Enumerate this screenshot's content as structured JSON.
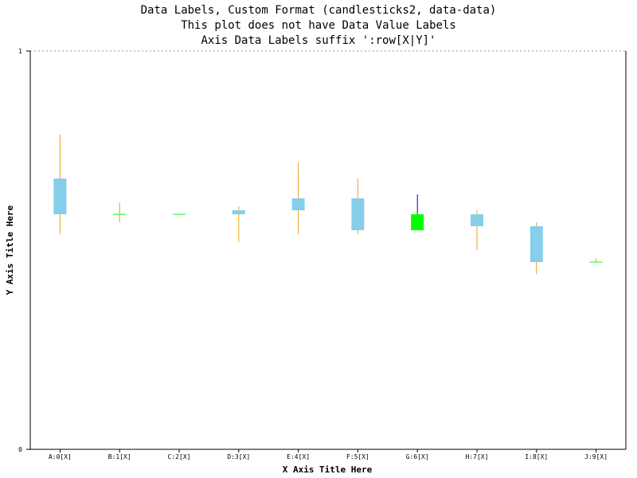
{
  "chart_data": {
    "type": "candlestick",
    "title": [
      "Data Labels, Custom Format (candlesticks2, data-data)",
      "This plot does not have Data Value Labels",
      "Axis Data Labels suffix ':row[X|Y]'"
    ],
    "xlabel": "X Axis Title Here",
    "ylabel": "Y Axis Title Here",
    "ylim": [
      0,
      1
    ],
    "y_ticks": [
      "0",
      "1"
    ],
    "grid": false,
    "categories": [
      "A:0[X]",
      "B:1[X]",
      "C:2[X]",
      "D:3[X]",
      "E:4[X]",
      "F:5[X]",
      "G:6[X]",
      "H:7[X]",
      "I:8[X]",
      "J:9[X]"
    ],
    "open": [
      0.59,
      0.59,
      0.59,
      0.59,
      0.6,
      0.55,
      0.59,
      0.56,
      0.47,
      0.47
    ],
    "high": [
      0.79,
      0.62,
      0.59,
      0.61,
      0.72,
      0.68,
      0.64,
      0.6,
      0.57,
      0.48
    ],
    "low": [
      0.54,
      0.57,
      0.59,
      0.52,
      0.54,
      0.54,
      0.55,
      0.5,
      0.44,
      0.47
    ],
    "close": [
      0.68,
      0.59,
      0.59,
      0.6,
      0.63,
      0.63,
      0.55,
      0.59,
      0.56,
      0.47
    ],
    "colors": {
      "up_body": "#87ceeb",
      "up_wick": "#e8a317",
      "down_body": "#00ff00",
      "down_wick": "#0000cd"
    }
  }
}
